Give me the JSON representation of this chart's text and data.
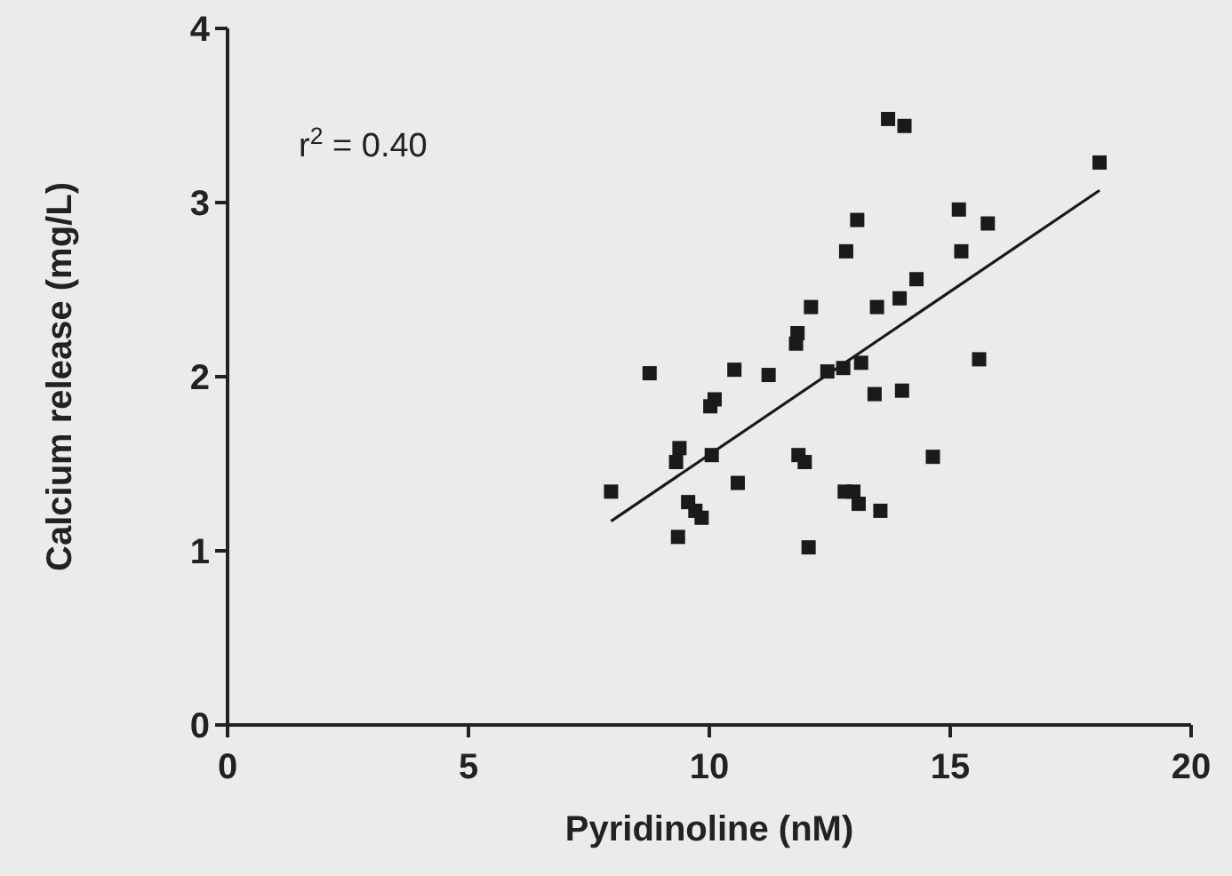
{
  "chart_data": {
    "type": "scatter",
    "xlabel": "Pyridinoline (nM)",
    "ylabel": "Calcium release (mg/L)",
    "xlim": [
      0,
      20
    ],
    "ylim": [
      0,
      4
    ],
    "xticks": [
      0,
      5,
      10,
      15,
      20
    ],
    "yticks": [
      0,
      1,
      2,
      3,
      4
    ],
    "grid": false,
    "marker": "square",
    "annotations": [
      "r$^{2}$ = 0.40"
    ],
    "series": [
      {
        "color": "#1a1a1a",
        "x": [
          7.96,
          8.76,
          9.35,
          9.31,
          9.38,
          9.56,
          9.71,
          9.84,
          10.05,
          10.02,
          10.11,
          10.59,
          10.52,
          11.23,
          11.8,
          11.83,
          12.11,
          11.85,
          11.98,
          12.06,
          12.45,
          12.78,
          12.84,
          13.07,
          13.15,
          12.81,
          12.99,
          13.1,
          13.43,
          13.48,
          13.55,
          13.71,
          14.05,
          13.95,
          14.0,
          14.3,
          14.64,
          15.18,
          15.23,
          15.6,
          15.78,
          18.1
        ],
        "values": [
          1.34,
          2.02,
          1.08,
          1.51,
          1.59,
          1.28,
          1.23,
          1.19,
          1.55,
          1.83,
          1.87,
          1.39,
          2.04,
          2.01,
          2.19,
          2.25,
          2.4,
          1.55,
          1.51,
          1.02,
          2.03,
          2.05,
          2.72,
          2.9,
          2.08,
          1.34,
          1.34,
          1.27,
          1.9,
          2.4,
          1.23,
          3.48,
          3.44,
          2.45,
          1.92,
          2.56,
          1.54,
          2.96,
          2.72,
          2.1,
          2.88,
          3.23
        ]
      },
      {
        "type": "line",
        "color": "#1a1a1a",
        "line_style": "solid",
        "marker": "none",
        "x": [
          7.96,
          18.1
        ],
        "values": [
          1.17,
          3.07
        ]
      }
    ]
  }
}
